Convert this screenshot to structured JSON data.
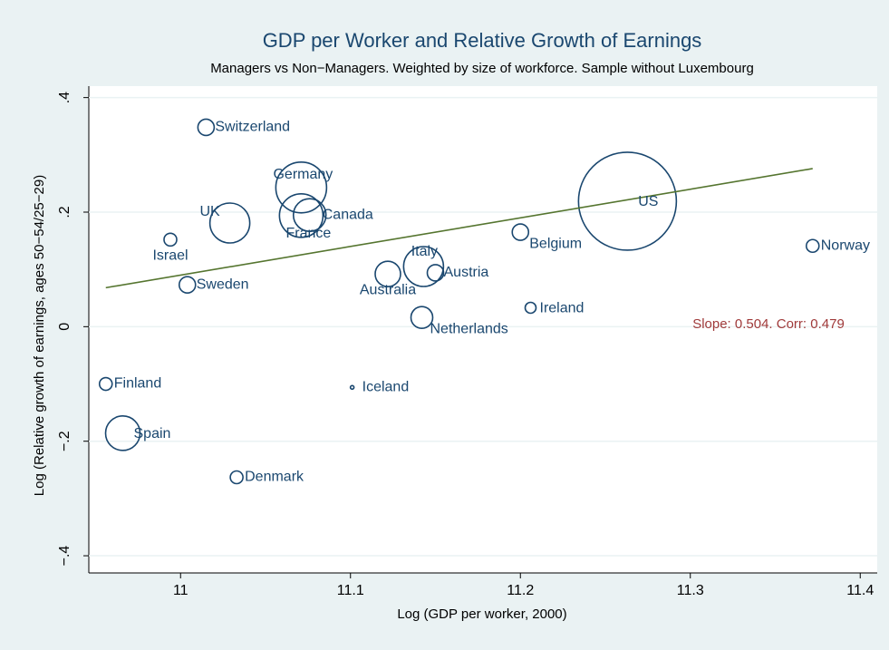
{
  "chart_data": {
    "type": "bubble",
    "title": "GDP per Worker and Relative Growth of Earnings",
    "subtitle": "Managers vs Non−Managers.  Weighted by size of workforce.  Sample without Luxembourg",
    "x_label": "Log (GDP per worker, 2000)",
    "y_label": "Log (Relative growth of earnings, ages 50−54/25−29)",
    "annotation": "Slope: 0.504.  Corr: 0.479",
    "annotation_color": "#a03a3a",
    "color": "#1a476f",
    "fit_color": "#55752f",
    "labels": [
      "Switzerland",
      "Germany",
      "UK",
      "Canada",
      "France",
      "Israel",
      "Sweden",
      "Italy",
      "Austria",
      "Australia",
      "Netherlands",
      "Belgium",
      "Ireland",
      "US",
      "Norway",
      "Finland",
      "Iceland",
      "Spain",
      "Denmark"
    ],
    "x": [
      11.015,
      11.071,
      11.029,
      11.076,
      11.071,
      10.994,
      11.004,
      11.143,
      11.15,
      11.122,
      11.142,
      11.2,
      11.206,
      11.263,
      11.372,
      10.956,
      11.101,
      10.966,
      11.033
    ],
    "values": [
      0.348,
      0.243,
      0.181,
      0.195,
      0.194,
      0.152,
      0.073,
      0.105,
      0.094,
      0.092,
      0.016,
      0.165,
      0.033,
      0.219,
      0.141,
      -0.1,
      -0.106,
      -0.186,
      -0.263
    ],
    "sizes": [
      9,
      28,
      22,
      18,
      24,
      7,
      9,
      22,
      9,
      14,
      12,
      9,
      6,
      54,
      7,
      7,
      2,
      19,
      7
    ],
    "fit_line": {
      "x": [
        10.956,
        11.372
      ],
      "y": [
        0.068,
        0.276
      ]
    },
    "xlim": [
      10.946,
      11.41
    ],
    "ylim": [
      -0.43,
      0.42
    ],
    "xticks": [
      11,
      11.1,
      11.2,
      11.3,
      11.4
    ],
    "yticks": [
      {
        "value": -0.4,
        "label": "−.4"
      },
      {
        "value": -0.2,
        "label": "−.2"
      },
      {
        "value": 0,
        "label": "0"
      },
      {
        "value": 0.2,
        "label": ".2"
      },
      {
        "value": 0.4,
        "label": ".4"
      }
    ],
    "grid": true
  }
}
